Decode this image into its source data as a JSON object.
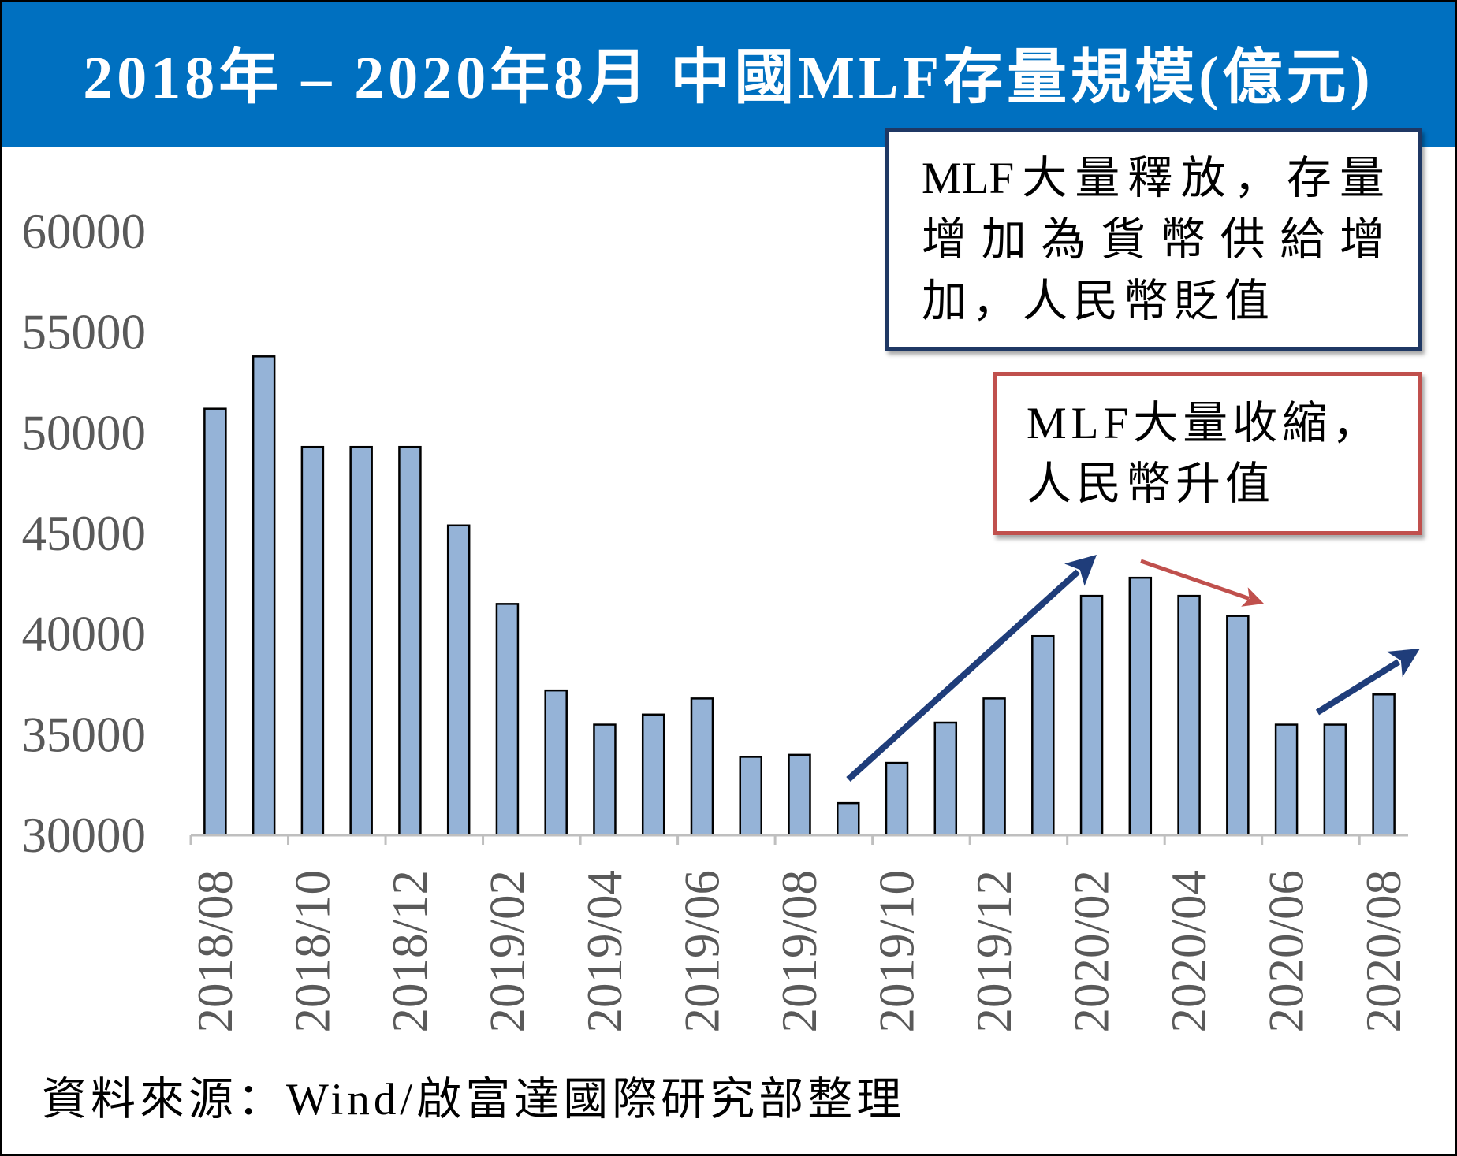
{
  "chart_data": {
    "type": "bar",
    "title": "2018年 – 2020年8月 中國MLF存量規模(億元)",
    "x_tick_labels": [
      "2018/08",
      "2018/10",
      "2018/12",
      "2019/02",
      "2019/04",
      "2019/06",
      "2019/08",
      "2019/10",
      "2019/12",
      "2020/02",
      "2020/04",
      "2020/06",
      "2020/08"
    ],
    "values": [
      51200,
      53800,
      49300,
      49300,
      49300,
      45400,
      41500,
      37200,
      35500,
      36000,
      36800,
      33900,
      34000,
      31600,
      33600,
      35600,
      36800,
      39900,
      41900,
      42800,
      41900,
      40900,
      35500,
      35500,
      37000
    ],
    "ylim": [
      30000,
      60000
    ],
    "y_ticks": [
      30000,
      35000,
      40000,
      45000,
      50000,
      55000,
      60000
    ],
    "grid": false,
    "legend": "none"
  },
  "annotations": [
    {
      "lines": [
        "MLF大量釋放，存量",
        "增加為貨幣供給增",
        "加，人民幣貶值"
      ],
      "border_color": "#1F3864"
    },
    {
      "lines": [
        "MLF大量收縮，",
        "人民幣升值"
      ],
      "border_color": "#C0504D"
    }
  ],
  "source": "資料來源：Wind/啟富達國際研究部整理",
  "colors": {
    "title_bar": "#0070C0",
    "title_text": "#FFFFFF",
    "bar_fill": "#95B3D7",
    "bar_outline": "#000000",
    "axis": "#BFBFBF",
    "tick_label": "#595959",
    "arrow_release": "#1F3D7A",
    "arrow_contraction": "#C0504D"
  }
}
